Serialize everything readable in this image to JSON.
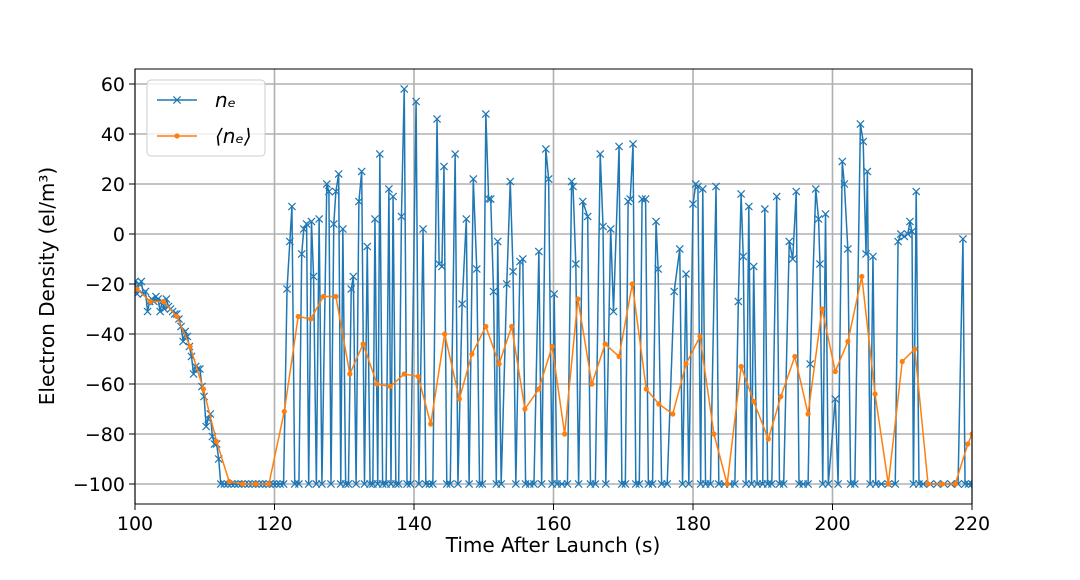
{
  "chart_data": {
    "type": "line",
    "x_label": "Time After Launch (s)",
    "y_label": "Electron Density (el/m³)",
    "xlim": [
      100,
      220
    ],
    "xticks": [
      100,
      120,
      140,
      160,
      180,
      200,
      220
    ],
    "ylim": [
      -108,
      66
    ],
    "yticks": [
      {
        "value": -100,
        "label": "−100"
      },
      {
        "value": -80,
        "label": "−80"
      },
      {
        "value": -60,
        "label": "−60"
      },
      {
        "value": -40,
        "label": "−40"
      },
      {
        "value": -20,
        "label": "−20"
      },
      0,
      20,
      40,
      60
    ],
    "grid": true,
    "legend": "upper left",
    "series": [
      {
        "name": "nₑ",
        "color": "#1f77b4",
        "marker": "x",
        "x": [
          100,
          100.3,
          100.6,
          100.9,
          101.2,
          101.5,
          101.8,
          102.1,
          102.4,
          102.7,
          103,
          103.3,
          103.6,
          103.9,
          104.2,
          104.5,
          104.8,
          105.1,
          105.4,
          105.7,
          106,
          106.3,
          106.6,
          106.9,
          107.2,
          107.5,
          107.8,
          108.1,
          108.4,
          108.7,
          109,
          109.3,
          109.6,
          109.9,
          110.2,
          110.5,
          110.8,
          111.1,
          111.4,
          111.7,
          112,
          112.3,
          112.8,
          113.3,
          113.8,
          114.3,
          114.8,
          115.3,
          115.8,
          116.3,
          116.8,
          117.3,
          117.8,
          118.3,
          118.8,
          119.3,
          119.8,
          120.3,
          120.8,
          121.3,
          121.8,
          122.2,
          122.5,
          122.9,
          123.5,
          123.9,
          124.2,
          124.6,
          124.9,
          125.3,
          125.6,
          126,
          126.4,
          126.8,
          127.5,
          127.8,
          128.1,
          128.5,
          128.8,
          129.2,
          129.5,
          129.8,
          130.2,
          130.6,
          131,
          131.3,
          131.7,
          132.1,
          132.5,
          132.9,
          133.3,
          133.7,
          134.1,
          134.4,
          134.8,
          135.1,
          135.5,
          136,
          136.4,
          136.7,
          137,
          137.4,
          137.8,
          138.2,
          138.6,
          139,
          139.5,
          140.3,
          140.7,
          141.3,
          141.7,
          142.2,
          142.7,
          143.3,
          143.6,
          144,
          144.3,
          144.7,
          145.2,
          145.9,
          146.3,
          146.9,
          147.5,
          147.9,
          148.5,
          149,
          149.4,
          149.8,
          150.3,
          150.7,
          151,
          151.4,
          151.8,
          152,
          152.5,
          153.3,
          153.8,
          154.2,
          154.6,
          155.2,
          155.6,
          156,
          156.6,
          157.2,
          157.9,
          158.3,
          158.9,
          159.3,
          159.8,
          160.1,
          160.5,
          161.2,
          162,
          162.6,
          162.8,
          163.2,
          163.6,
          164.2,
          164.9,
          165.3,
          166,
          166.7,
          167.1,
          167.5,
          168.2,
          168.6,
          169.4,
          169.8,
          170.3,
          170.7,
          171,
          171.4,
          171.8,
          172.3,
          172.7,
          173.2,
          173.6,
          174.2,
          174.7,
          175,
          175.5,
          176.3,
          177.3,
          178.1,
          178.5,
          179,
          179.4,
          180,
          180.4,
          180.7,
          181.1,
          181.4,
          181.8,
          182.5,
          183.3,
          183.7,
          184.5,
          185.3,
          186,
          186.5,
          186.9,
          187.2,
          187.6,
          188,
          188.4,
          188.7,
          189.2,
          190,
          190.3,
          190.7,
          191.3,
          192,
          192.4,
          193,
          193.8,
          194.3,
          194.8,
          195.2,
          195.8,
          196.5,
          196.8,
          197.6,
          198,
          198.2,
          198.6,
          199,
          199.4,
          200.4,
          200.8,
          201.4,
          201.7,
          202.2,
          202.6,
          203.2,
          204,
          204.4,
          204.8,
          205,
          205.4,
          205.8,
          206.2,
          207,
          208,
          209,
          209.4,
          209.8,
          210.3,
          210.8,
          211.1,
          211.4,
          211.6,
          212,
          212.4,
          213,
          214,
          215,
          216,
          217,
          218,
          218.7,
          219,
          219.5,
          220
        ],
        "values": [
          -19,
          -24,
          -20,
          -19,
          -24,
          -23,
          -31,
          -27,
          -26,
          -27,
          -25,
          -26,
          -31,
          -27,
          -30,
          -26,
          -29,
          -30,
          -31,
          -32,
          -32,
          -34,
          -37,
          -43,
          -39,
          -41,
          -45,
          -49,
          -56,
          -53,
          -54,
          -54,
          -61,
          -65,
          -77,
          -74,
          -72,
          -81,
          -84,
          -84,
          -90,
          -100,
          -100,
          -100,
          -100,
          -100,
          -100,
          -100,
          -100,
          -100,
          -100,
          -100,
          -100,
          -100,
          -100,
          -100,
          -100,
          -100,
          -100,
          -100,
          -22,
          -3,
          11,
          -100,
          -100,
          -8,
          2,
          4,
          -100,
          5,
          -17,
          -100,
          6,
          -100,
          20,
          17,
          -100,
          4,
          17,
          24,
          -100,
          2,
          -100,
          -100,
          -22,
          -17,
          -100,
          13,
          25,
          -100,
          -5,
          -100,
          -100,
          6,
          -100,
          32,
          -100,
          -100,
          18,
          -100,
          15,
          -100,
          -100,
          7,
          58,
          -100,
          -100,
          53,
          -100,
          2,
          -100,
          -100,
          -100,
          46,
          -12,
          -13,
          27,
          -100,
          -100,
          32,
          -100,
          -28,
          6,
          -100,
          22,
          -14,
          -100,
          -100,
          48,
          14,
          14,
          -23,
          -100,
          -3,
          -100,
          -20,
          21,
          -15,
          -100,
          -11,
          -10,
          -100,
          -100,
          -100,
          -7,
          -100,
          34,
          22,
          -100,
          -24,
          -100,
          -100,
          -100,
          21,
          19,
          -12,
          -100,
          13,
          7,
          -100,
          -100,
          32,
          3,
          -100,
          2,
          -31,
          35,
          -100,
          -100,
          13,
          14,
          36,
          -100,
          -100,
          14,
          14,
          -100,
          -100,
          5,
          -14,
          -100,
          -100,
          -23,
          -6,
          -100,
          -16,
          -100,
          12,
          20,
          19,
          -100,
          18,
          -100,
          -100,
          19,
          -100,
          -100,
          -100,
          -100,
          -27,
          16,
          -9,
          -100,
          11,
          -100,
          -13,
          -100,
          -100,
          10,
          -100,
          -100,
          15,
          -100,
          -100,
          -3,
          -10,
          17,
          -100,
          -100,
          -100,
          -52,
          18,
          6,
          -12,
          -100,
          8,
          -100,
          -66,
          -100,
          29,
          20,
          -6,
          -100,
          -100,
          44,
          37,
          -8,
          25,
          -100,
          -9,
          -100,
          -100,
          -100,
          -100,
          -3,
          0,
          -1,
          0,
          5,
          1,
          -100,
          17,
          -100,
          -100,
          -100,
          -100,
          -100,
          -100,
          -100,
          -2,
          -100,
          -100,
          -100
        ]
      },
      {
        "name": "⟨nₑ⟩",
        "color": "#ff7f0e",
        "marker": "o",
        "x": [
          100.3,
          102.2,
          104.1,
          106,
          107.9,
          109.8,
          111.7,
          113.5,
          115.4,
          117.3,
          119.2,
          121.4,
          123.4,
          125.2,
          127,
          128.8,
          130.8,
          132.7,
          134.7,
          136.6,
          138.6,
          140.6,
          142.4,
          144.4,
          146.5,
          148.3,
          150.3,
          152.2,
          154,
          155.9,
          157.9,
          159.8,
          161.6,
          163.5,
          165.5,
          167.4,
          169.4,
          171.3,
          173.3,
          175.1,
          177.1,
          179,
          181,
          183,
          184.9,
          186.9,
          188.7,
          190.8,
          192.6,
          194.6,
          196.5,
          198.5,
          200.4,
          202.2,
          204.2,
          206.1,
          208,
          210,
          211.8,
          213.7,
          215.7,
          217.6,
          219.4,
          220
        ],
        "values": [
          -22,
          -27,
          -27,
          -33,
          -45,
          -62,
          -83,
          -99,
          -100,
          -100,
          -100,
          -71,
          -33,
          -34,
          -25,
          -25,
          -56,
          -44,
          -60,
          -61,
          -56,
          -57,
          -76,
          -40,
          -66,
          -48,
          -37,
          -52,
          -37,
          -70,
          -62,
          -45,
          -80,
          -26,
          -60,
          -44,
          -49,
          -20,
          -62,
          -68,
          -72,
          -52,
          -41,
          -80,
          -100,
          -53,
          -67,
          -82,
          -65,
          -49,
          -72,
          -30,
          -55,
          -43,
          -17,
          -64,
          -100,
          -51,
          -46,
          -100,
          -100,
          -100,
          -84,
          -80
        ]
      }
    ]
  }
}
